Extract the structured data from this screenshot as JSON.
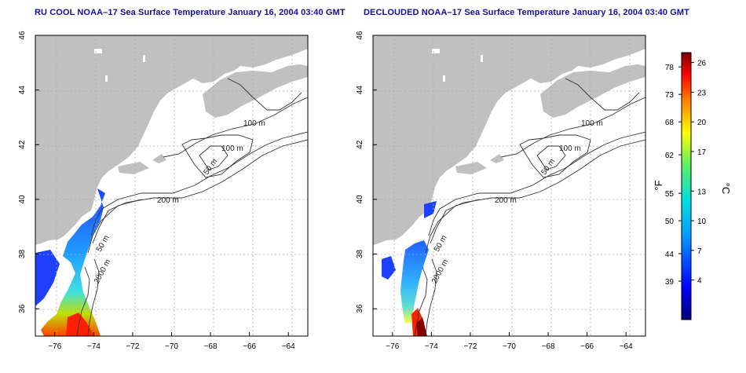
{
  "panels": [
    {
      "title": "RU COOL NOAA–17 Sea Surface Temperature January 16, 2004 03:40 GMT",
      "contour_labels": [
        "100 m",
        "100 m",
        "50 m",
        "200 m",
        "50 m",
        "2000 m"
      ]
    },
    {
      "title": "DECLOUDED NOAA–17 Sea Surface Temperature January 16, 2004 03:40 GMT",
      "contour_labels": [
        "100 m",
        "100 m",
        "50 m",
        "200 m",
        "50 m",
        "2000 m"
      ]
    }
  ],
  "axes": {
    "x_ticks": [
      "−76",
      "−74",
      "−72",
      "−70",
      "−68",
      "−66",
      "−64"
    ],
    "y_ticks": [
      "36",
      "38",
      "40",
      "42",
      "44",
      "46"
    ],
    "lon_range": [
      -77,
      -63
    ],
    "lat_range": [
      35,
      46
    ]
  },
  "colorbar": {
    "f_label": "°F",
    "c_label": "°C",
    "f_ticks": [
      "78",
      "73",
      "68",
      "62",
      "55",
      "50",
      "44",
      "39"
    ],
    "c_ticks": [
      "26",
      "23",
      "20",
      "17",
      "13",
      "10",
      "7",
      "4"
    ],
    "c_range": [
      0,
      27
    ]
  },
  "colors": {
    "land": "#c0c0c0",
    "title": "#1010a0",
    "grid": "#aaaaaa"
  }
}
